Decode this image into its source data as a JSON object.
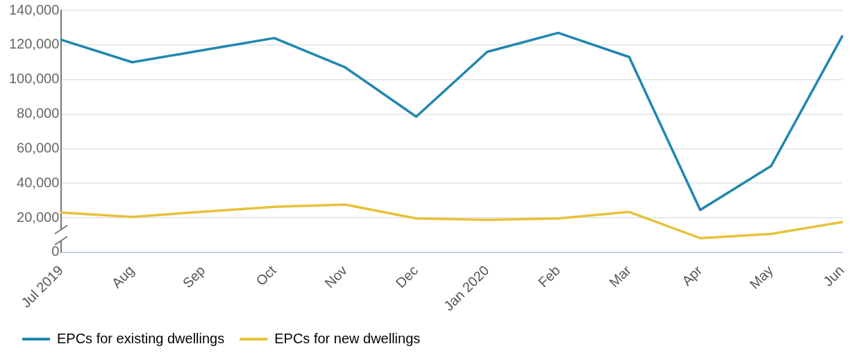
{
  "chart_data": {
    "type": "line",
    "categories": [
      "Jul 2019",
      "Aug",
      "Sep",
      "Oct",
      "Nov",
      "Dec",
      "Jan 2020",
      "Feb",
      "Mar",
      "Apr",
      "May",
      "Jun"
    ],
    "series": [
      {
        "name": "EPCs for existing dwellings",
        "color": "#1f87b0",
        "values": [
          123000,
          110000,
          117000,
          124000,
          107000,
          78500,
          116000,
          127000,
          113000,
          24500,
          50000,
          125000
        ]
      },
      {
        "name": "EPCs for new dwellings",
        "color": "#e6c23a",
        "values": [
          23000,
          20500,
          23500,
          26300,
          27600,
          19600,
          18800,
          19600,
          23400,
          8200,
          10700,
          17500
        ]
      }
    ],
    "ylim": [
      0,
      140000
    ],
    "yticks": [
      0,
      {
        "value": 20000,
        "label": "20,000"
      },
      {
        "value": 40000,
        "label": "40,000"
      },
      {
        "value": 60000,
        "label": "60,000"
      },
      {
        "value": 80000,
        "label": "80,000"
      },
      {
        "value": 100000,
        "label": "100,000"
      },
      {
        "value": 120000,
        "label": "120,000"
      },
      {
        "value": 140000,
        "label": "140,000"
      }
    ],
    "grid": "y",
    "legend": "bottom left",
    "marker": "none",
    "line_style": "solid"
  }
}
